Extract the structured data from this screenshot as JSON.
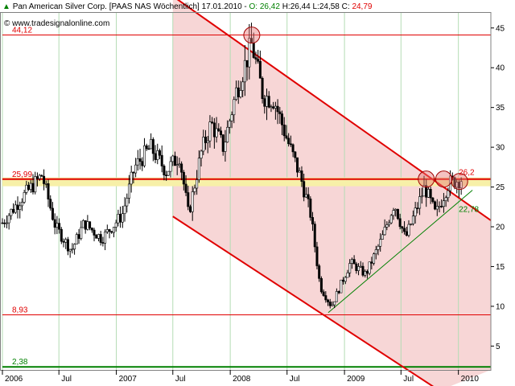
{
  "header": {
    "instrument": "Pan American Silver Corp. [PAAS NAS  Wöchentlich] 17.01.2010 - ",
    "open_prefix": "O:",
    "open": "26,42",
    "high_text": " H:26,44",
    "low_text": " L:24,58",
    "close_prefix": " C:",
    "close": "24,79",
    "source": "© www.tradesignalonline.com"
  },
  "colors": {
    "background": "#ffffff",
    "plot_border": "#808080",
    "grid": "#b4dcb4",
    "channel_line": "#e00000",
    "channel_fill": "#f7d6d6",
    "support_band": "#f7f0a8",
    "level_line": "#e00000",
    "support_line": "#008000",
    "candles": "#000000",
    "up_text": "#008000",
    "down_text": "#e00000"
  },
  "chart_data": {
    "type": "candlestick",
    "title": "Pan American Silver Corp. [PAAS NAS  Wöchentlich] 17.01.2010",
    "ohlc_last": {
      "open": 26.42,
      "high": 26.44,
      "low": 24.58,
      "close": 24.79
    },
    "y_ticks": [
      5,
      10,
      15,
      20,
      25,
      30,
      35,
      40,
      45
    ],
    "y_range": [
      2,
      47
    ],
    "x_range": [
      "2006-01-01",
      "2010-04-15"
    ],
    "x_ticks": [
      {
        "date": "2006-01-01",
        "label": "2006"
      },
      {
        "date": "2006-07-01",
        "label": "Jul"
      },
      {
        "date": "2007-01-01",
        "label": "2007"
      },
      {
        "date": "2007-07-01",
        "label": "Jul"
      },
      {
        "date": "2008-01-01",
        "label": "2008"
      },
      {
        "date": "2008-07-01",
        "label": "Jul"
      },
      {
        "date": "2009-01-01",
        "label": "2009"
      },
      {
        "date": "2009-07-01",
        "label": "Jul"
      },
      {
        "date": "2010-01-01",
        "label": "2010"
      }
    ],
    "grid": true,
    "horizontal_levels": [
      {
        "value": 44.12,
        "label": "44,12",
        "color": "#e00000"
      },
      {
        "value": 25.99,
        "label": "25,99",
        "color": "#e00000"
      },
      {
        "value": 8.93,
        "label": "8,93",
        "color": "#e00000"
      },
      {
        "value": 2.38,
        "label": "2,38",
        "color": "#008000"
      }
    ],
    "support_zone": [
      25.1,
      26.2
    ],
    "channel": {
      "upper": [
        [
          "2007-07-01",
          49.0
        ],
        [
          "2010-04-15",
          20.8
        ]
      ],
      "lower": [
        [
          "2007-07-01",
          21.3
        ],
        [
          "2009-11-01",
          -0.6
        ]
      ],
      "fill_from": "2007-07-01"
    },
    "uptrend_line": {
      "points": [
        [
          "2008-11-10",
          9.2
        ],
        [
          "2010-02-15",
          24.6
        ]
      ],
      "color": "#008000"
    },
    "annotations": [
      {
        "date": "2010-01-15",
        "value": 26.2,
        "text": "26,2",
        "color": "#e00000"
      },
      {
        "date": "2010-01-15",
        "value": 22.78,
        "text": "22,78",
        "color": "#008000"
      }
    ],
    "circles": [
      {
        "date": "2008-03-10",
        "value": 44.1
      },
      {
        "date": "2009-09-20",
        "value": 26.0
      },
      {
        "date": "2009-11-15",
        "value": 26.0
      },
      {
        "date": "2010-01-05",
        "value": 25.7
      }
    ],
    "anchors": [
      [
        "2006-01-01",
        20.5
      ],
      [
        "2006-03-01",
        23.5
      ],
      [
        "2006-05-08",
        26.5
      ],
      [
        "2006-06-20",
        20.0
      ],
      [
        "2006-08-10",
        17.0
      ],
      [
        "2006-09-20",
        20.5
      ],
      [
        "2006-11-15",
        18.5
      ],
      [
        "2007-01-20",
        21.5
      ],
      [
        "2007-03-01",
        27.5
      ],
      [
        "2007-04-20",
        30.0
      ],
      [
        "2007-06-10",
        27.0
      ],
      [
        "2007-07-22",
        29.0
      ],
      [
        "2007-08-20",
        21.5
      ],
      [
        "2007-10-01",
        29.5
      ],
      [
        "2007-11-01",
        33.0
      ],
      [
        "2007-12-10",
        30.0
      ],
      [
        "2008-01-20",
        37.0
      ],
      [
        "2008-03-10",
        43.0
      ],
      [
        "2008-04-15",
        36.5
      ],
      [
        "2008-05-20",
        36.0
      ],
      [
        "2008-07-01",
        31.0
      ],
      [
        "2008-08-15",
        26.0
      ],
      [
        "2008-09-15",
        21.5
      ],
      [
        "2008-10-15",
        12.5
      ],
      [
        "2008-11-20",
        10.0
      ],
      [
        "2009-01-20",
        15.5
      ],
      [
        "2009-03-10",
        14.0
      ],
      [
        "2009-05-01",
        18.5
      ],
      [
        "2009-06-10",
        23.0
      ],
      [
        "2009-07-15",
        18.5
      ],
      [
        "2009-09-15",
        25.0
      ],
      [
        "2009-10-20",
        21.5
      ],
      [
        "2009-12-01",
        25.5
      ],
      [
        "2010-01-10",
        26.0
      ]
    ]
  }
}
